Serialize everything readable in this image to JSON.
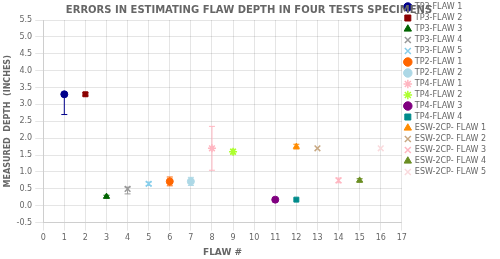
{
  "chart_data": {
    "type": "scatter",
    "title": "ERRORS IN ESTIMATING FLAW DEPTH IN FOUR TESTS SPECIMENS",
    "x_label": "FLAW #",
    "y_label": "MEASURED  DEPTH  (INCHES)",
    "xlim": [
      0,
      17
    ],
    "ylim": [
      -0.5,
      5.5
    ],
    "xticks": [
      0,
      1,
      2,
      3,
      4,
      5,
      6,
      7,
      8,
      9,
      10,
      11,
      12,
      13,
      14,
      15,
      16,
      17
    ],
    "yticks": [
      -0.5,
      {
        "value": 0,
        "label": "0.0"
      },
      0.5,
      {
        "value": 1,
        "label": "1.0"
      },
      1.5,
      {
        "value": 2,
        "label": "2.0"
      },
      2.5,
      {
        "value": 3,
        "label": "3.0"
      },
      3.5,
      {
        "value": 4,
        "label": "4.0"
      },
      4.5,
      {
        "value": 5,
        "label": "5.0"
      },
      5.5
    ],
    "grid": true,
    "legend": "right",
    "series": [
      {
        "name": "TP3-FLAW 1",
        "color": "#00008B",
        "marker": "circle",
        "x": [
          1
        ],
        "values": [
          3.3
        ],
        "error_lo": [
          0.6
        ],
        "error_hi": [
          0.05
        ]
      },
      {
        "name": "TP3-FLAW 2",
        "color": "#8B0000",
        "marker": "square",
        "x": [
          2
        ],
        "values": [
          3.3
        ],
        "error_lo": [
          0.05
        ],
        "error_hi": [
          0.05
        ]
      },
      {
        "name": "TP3-FLAW 3",
        "color": "#006400",
        "marker": "triangle",
        "x": [
          3
        ],
        "values": [
          0.27
        ],
        "error_lo": [
          0.04
        ],
        "error_hi": [
          0.04
        ]
      },
      {
        "name": "TP3-FLAW 4",
        "color": "#999999",
        "marker": "x",
        "x": [
          4
        ],
        "values": [
          0.5
        ],
        "error_lo": [
          0.15
        ],
        "error_hi": [
          0.05
        ]
      },
      {
        "name": "TP3-FLAW 5",
        "color": "#87CEEB",
        "marker": "x",
        "x": [
          5
        ],
        "values": [
          0.65
        ],
        "error_lo": [
          0.05
        ],
        "error_hi": [
          0.05
        ]
      },
      {
        "name": "TP2-FLAW 1",
        "color": "#FF6600",
        "marker": "circle",
        "x": [
          6
        ],
        "values": [
          0.72
        ],
        "error_lo": [
          0.13
        ],
        "error_hi": [
          0.13
        ]
      },
      {
        "name": "TP2-FLAW 2",
        "color": "#ADD8E6",
        "marker": "circle",
        "x": [
          7
        ],
        "values": [
          0.72
        ],
        "error_lo": [
          0.12
        ],
        "error_hi": [
          0.12
        ]
      },
      {
        "name": "TP4-FLAW 1",
        "color": "#FFB6C1",
        "marker": "tri_down",
        "x": [
          8
        ],
        "values": [
          1.7
        ],
        "error_lo": [
          0.65
        ],
        "error_hi": [
          0.65
        ]
      },
      {
        "name": "TP4-FLAW 2",
        "color": "#ADFF2F",
        "marker": "tri_down",
        "x": [
          9
        ],
        "values": [
          1.6
        ],
        "error_lo": [
          0.07
        ],
        "error_hi": [
          0.07
        ]
      },
      {
        "name": "TP4-FLAW 3",
        "color": "#800080",
        "marker": "circle",
        "x": [
          11
        ],
        "values": [
          0.18
        ],
        "error_lo": [
          0.0
        ],
        "error_hi": [
          0.0
        ]
      },
      {
        "name": "TP4-FLAW 4",
        "color": "#008B8B",
        "marker": "square",
        "x": [
          12
        ],
        "values": [
          0.18
        ],
        "error_lo": [
          0.0
        ],
        "error_hi": [
          0.0
        ]
      },
      {
        "name": "ESW-2CP- FLAW 1",
        "color": "#FF8C00",
        "marker": "triangle",
        "x": [
          12
        ],
        "values": [
          1.75
        ],
        "error_lo": [
          0.07
        ],
        "error_hi": [
          0.07
        ]
      },
      {
        "name": "ESW-2CP- FLAW 2",
        "color": "#C8A882",
        "marker": "x",
        "x": [
          13
        ],
        "values": [
          1.7
        ],
        "error_lo": [
          0.0
        ],
        "error_hi": [
          0.0
        ]
      },
      {
        "name": "ESW-2CP- FLAW 3",
        "color": "#FFB6C1",
        "marker": "x",
        "x": [
          14
        ],
        "values": [
          0.75
        ],
        "error_lo": [
          0.07
        ],
        "error_hi": [
          0.07
        ]
      },
      {
        "name": "ESW-2CP- FLAW 4",
        "color": "#6B8E23",
        "marker": "triangle",
        "x": [
          15
        ],
        "values": [
          0.75
        ],
        "error_lo": [
          0.05
        ],
        "error_hi": [
          0.05
        ]
      },
      {
        "name": "ESW-2CP- FLAW 5",
        "color": "#FADADD",
        "marker": "x",
        "x": [
          16
        ],
        "values": [
          1.7
        ],
        "error_lo": [
          0.0
        ],
        "error_hi": [
          0.0
        ]
      }
    ]
  }
}
